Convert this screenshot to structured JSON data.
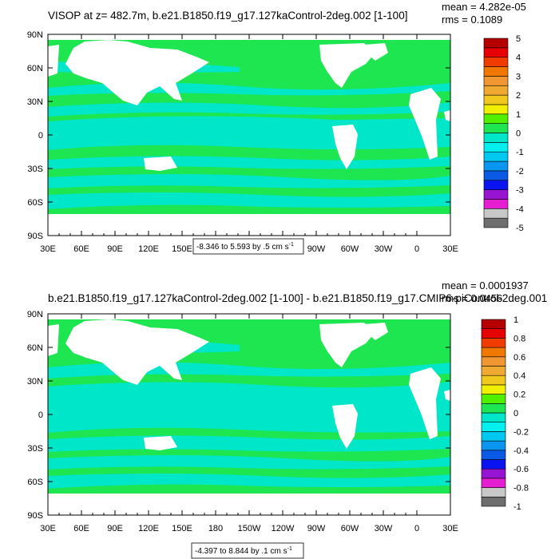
{
  "colors": {
    "land": "#ffffff",
    "frame": "#000000",
    "palette": [
      "#6e6e6e",
      "#c8c8c8",
      "#e61ed2",
      "#9614d2",
      "#0a14f0",
      "#0a5ae6",
      "#0a96f0",
      "#00c8f0",
      "#00f0f0",
      "#00e6c8",
      "#1ee650",
      "#50f000",
      "#f0f000",
      "#f0c81e",
      "#f0aa32",
      "#f09632",
      "#f07800",
      "#f03c00",
      "#e60000",
      "#b40000"
    ]
  },
  "chart_data": [
    {
      "type": "heatmap",
      "title": "VISOP at z= 482.7m, b.e21.B1850.f19_g17.127kaControl-2deg.002 [1-100]",
      "stats": {
        "mean": "mean = 4.282e-05",
        "rms": "rms = 0.1089"
      },
      "x_ticks": [
        "30E",
        "60E",
        "90E",
        "120E",
        "150E",
        "180",
        "150W",
        "120W",
        "90W",
        "60W",
        "30W",
        "0",
        "30E"
      ],
      "y_ticks": [
        "90N",
        "60N",
        "30N",
        "0",
        "30S",
        "60S",
        "90S"
      ],
      "xlim": [
        30,
        390
      ],
      "ylim": [
        -90,
        90
      ],
      "colorbar_labels": [
        "5",
        "4",
        "3",
        "2",
        "1",
        "0",
        "-1",
        "-2",
        "-3",
        "-4",
        "-5"
      ],
      "colorbar_range": [
        -5,
        5
      ],
      "contour_note": {
        "text": "-8.346 to 5.593 by .5 cm s",
        "sup": "-1"
      },
      "field_colors": {
        "ocean_a": "#1ee650",
        "ocean_b": "#00e6c8"
      }
    },
    {
      "type": "heatmap",
      "title": "b.e21.B1850.f19_g17.127kaControl-2deg.002 [1-100] - b.e21.B1850.f19_g17.CMIP6-piControl-2deg.001",
      "stats": {
        "mean": "mean = 0.0001937",
        "rms": "rms = 0.0456"
      },
      "x_ticks": [
        "30E",
        "60E",
        "90E",
        "120E",
        "150E",
        "180",
        "150W",
        "120W",
        "90W",
        "60W",
        "30W",
        "0",
        "30E"
      ],
      "y_ticks": [
        "90N",
        "60N",
        "30N",
        "0",
        "30S",
        "60S",
        "90S"
      ],
      "xlim": [
        30,
        390
      ],
      "ylim": [
        -90,
        90
      ],
      "colorbar_labels": [
        "1",
        "0.8",
        "0.6",
        "0.4",
        "0.2",
        "0",
        "-0.2",
        "-0.4",
        "-0.6",
        "-0.8",
        "-1"
      ],
      "colorbar_range": [
        -1,
        1
      ],
      "contour_note": {
        "text": "-4.397 to 8.844 by .1 cm s",
        "sup": "-1"
      },
      "field_colors": {
        "ocean_a": "#1ee650",
        "ocean_b": "#00e6c8"
      }
    }
  ]
}
